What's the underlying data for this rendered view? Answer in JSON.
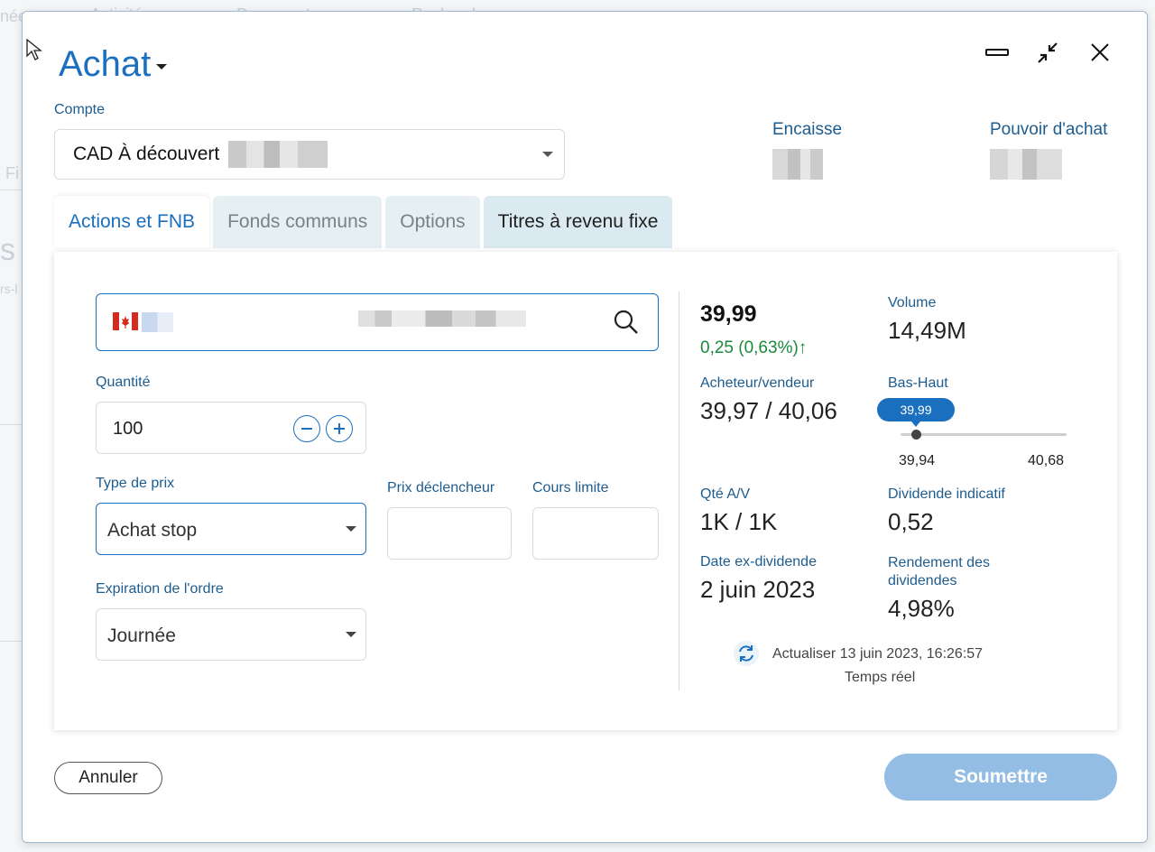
{
  "background": {
    "fragments": [
      "née",
      "Activités",
      "Documents",
      "Recherche",
      "Fi",
      "s",
      "rs-l"
    ]
  },
  "dialog": {
    "title": "Achat",
    "window_controls": [
      "minimize-icon",
      "collapse-icon",
      "close-icon"
    ]
  },
  "account": {
    "label": "Compte",
    "value": "CAD À découvert",
    "cash_label": "Encaisse",
    "buying_power_label": "Pouvoir d'achat"
  },
  "tabs": [
    {
      "label": "Actions et FNB",
      "state": "active"
    },
    {
      "label": "Fonds communs",
      "state": "inactive"
    },
    {
      "label": "Options",
      "state": "inactive"
    },
    {
      "label": "Titres à revenu fixe",
      "state": "highlight"
    }
  ],
  "order": {
    "quantity_label": "Quantité",
    "quantity": "100",
    "price_type_label": "Type de prix",
    "price_type": "Achat stop",
    "trigger_label": "Prix déclencheur",
    "limit_label": "Cours limite",
    "expiry_label": "Expiration de l'ordre",
    "expiry": "Journée"
  },
  "quote": {
    "last": "39,99",
    "change": "0,25  (0,63%)↑",
    "volume_label": "Volume",
    "volume": "14,49M",
    "bid_ask_label": "Acheteur/vendeur",
    "bid_ask": "39,97 / 40,06",
    "range_label": "Bas-Haut",
    "range_current": "39,99",
    "range_low": "39,94",
    "range_high": "40,68",
    "size_label": "Qté A/V",
    "size": "1K / 1K",
    "dividend_label": "Dividende indicatif",
    "dividend": "0,52",
    "exdiv_label": "Date ex-dividende",
    "exdiv": "2 juin 2023",
    "yield_label": "Rendement des dividendes",
    "yield": "4,98%",
    "refresh_text": "Actualiser 13 juin 2023, 16:26:57",
    "realtime_text": "Temps réel"
  },
  "footer": {
    "cancel": "Annuler",
    "submit": "Soumettre"
  },
  "colors": {
    "accent": "#1a6fbf",
    "label": "#1d5c8f",
    "positive": "#1a8a3a",
    "submit_disabled": "#93bde4"
  }
}
